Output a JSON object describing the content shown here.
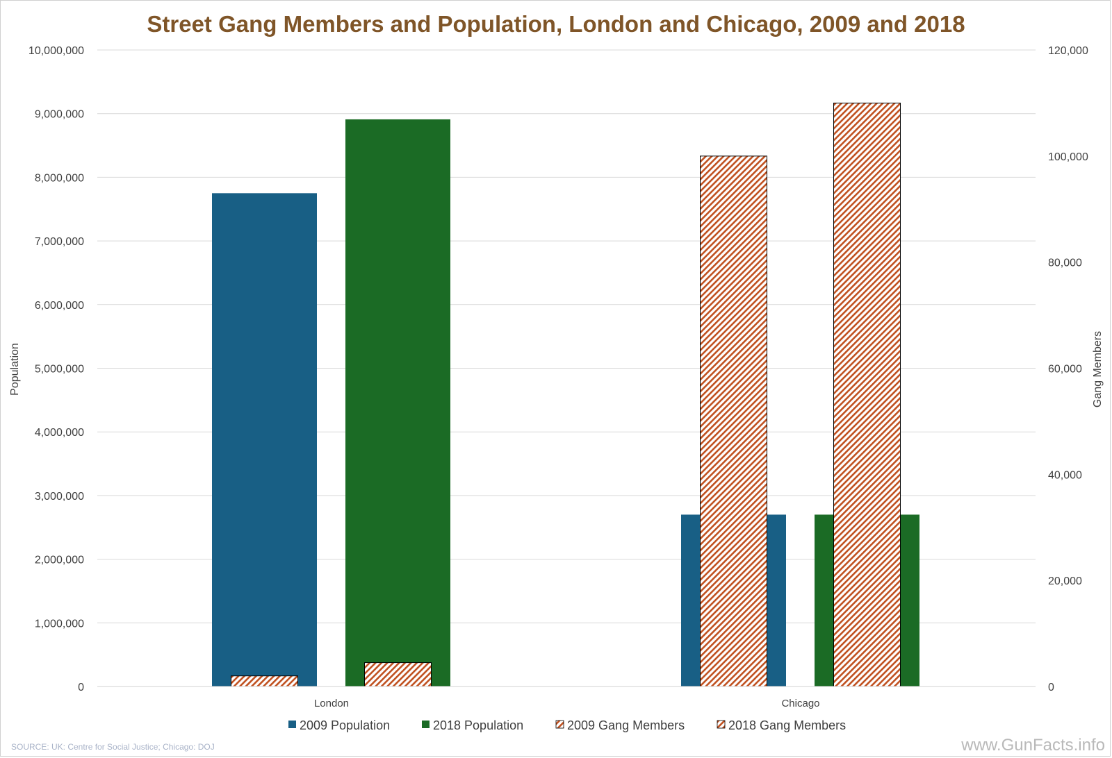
{
  "chart_data": {
    "type": "bar",
    "title": "Street Gang Members and Population, London and Chicago, 2009 and 2018",
    "categories": [
      "London",
      "Chicago"
    ],
    "series": [
      {
        "name": "2009 Population",
        "axis": "left",
        "color": "#185f85",
        "pattern": "solid",
        "values": [
          7750000,
          2700000
        ]
      },
      {
        "name": "2018 Population",
        "axis": "left",
        "color": "#1b6b25",
        "pattern": "solid",
        "values": [
          8910000,
          2700000
        ]
      },
      {
        "name": "2009 Gang Members",
        "axis": "right",
        "color": "#c0501f",
        "pattern": "hatch",
        "values": [
          2000,
          100000
        ]
      },
      {
        "name": "2018 Gang Members",
        "axis": "right",
        "color": "#c0501f",
        "pattern": "hatch",
        "values": [
          4500,
          110000
        ]
      }
    ],
    "y_left": {
      "label": "Population",
      "min": 0,
      "max": 10000000,
      "step": 1000000,
      "tick_labels": [
        "0",
        "1,000,000",
        "2,000,000",
        "3,000,000",
        "4,000,000",
        "5,000,000",
        "6,000,000",
        "7,000,000",
        "8,000,000",
        "9,000,000",
        "10,000,000"
      ]
    },
    "y_right": {
      "label": "Gang Members",
      "min": 0,
      "max": 120000,
      "step": 20000,
      "tick_labels": [
        "0",
        "20,000",
        "40,000",
        "60,000",
        "80,000",
        "100,000",
        "120,000"
      ]
    },
    "grid": true,
    "legend_position": "bottom"
  },
  "footer": {
    "source": "SOURCE: UK: Centre for Social Justice; Chicago: DOJ",
    "watermark": "www.GunFacts.info"
  }
}
